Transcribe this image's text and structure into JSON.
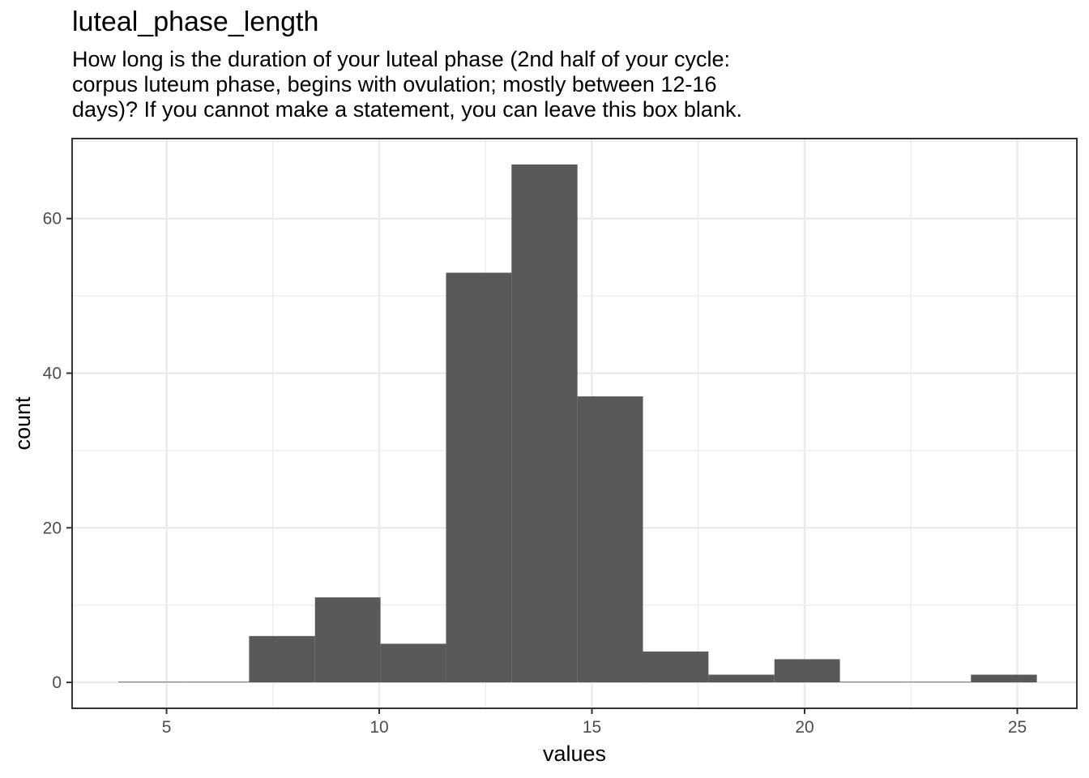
{
  "chart_data": {
    "type": "bar",
    "title": "luteal_phase_length",
    "subtitle": [
      "How long is the duration of your luteal phase (2nd half of your cycle:",
      "corpus luteum phase, begins with ovulation; mostly between 12-16",
      "days)? If you cannot make a statement, you can leave this box blank."
    ],
    "xlabel": "values",
    "ylabel": "count",
    "xlim": [
      2.78,
      26.4
    ],
    "ylim": [
      -3.35,
      70.35
    ],
    "xticks": [
      5,
      10,
      15,
      20,
      25
    ],
    "yticks": [
      0,
      20,
      40,
      60
    ],
    "grid": true,
    "bins": [
      {
        "x0": 3.86,
        "x1": 5.4,
        "count": 0
      },
      {
        "x0": 5.4,
        "x1": 6.94,
        "count": 0
      },
      {
        "x0": 6.94,
        "x1": 8.49,
        "count": 6
      },
      {
        "x0": 8.49,
        "x1": 10.03,
        "count": 11
      },
      {
        "x0": 10.03,
        "x1": 11.57,
        "count": 5
      },
      {
        "x0": 11.57,
        "x1": 13.11,
        "count": 53
      },
      {
        "x0": 13.11,
        "x1": 14.66,
        "count": 67
      },
      {
        "x0": 14.66,
        "x1": 16.2,
        "count": 37
      },
      {
        "x0": 16.2,
        "x1": 17.74,
        "count": 4
      },
      {
        "x0": 17.74,
        "x1": 19.29,
        "count": 1
      },
      {
        "x0": 19.29,
        "x1": 20.83,
        "count": 3
      },
      {
        "x0": 20.83,
        "x1": 22.37,
        "count": 0
      },
      {
        "x0": 22.37,
        "x1": 23.91,
        "count": 0
      },
      {
        "x0": 23.91,
        "x1": 25.46,
        "count": 1
      }
    ],
    "bar_color": "#595959"
  }
}
